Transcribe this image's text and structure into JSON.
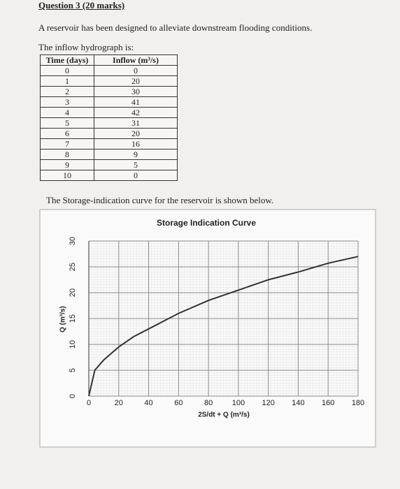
{
  "header": {
    "title": "Question 3 (20 marks)"
  },
  "intro": "A reservoir has been designed to alleviate downstream flooding conditions.",
  "hydrograph_lead": "The inflow hydrograph is:",
  "table": {
    "columns": [
      "Time (days)",
      "Inflow (m³/s)"
    ],
    "rows": [
      [
        0,
        0
      ],
      [
        1,
        20
      ],
      [
        2,
        30
      ],
      [
        3,
        41
      ],
      [
        4,
        42
      ],
      [
        5,
        31
      ],
      [
        6,
        20
      ],
      [
        7,
        16
      ],
      [
        8,
        9
      ],
      [
        9,
        5
      ],
      [
        10,
        0
      ]
    ]
  },
  "storage_lead": "The Storage-indication curve for the reservoir is shown below.",
  "chart_data": {
    "type": "line",
    "title": "Storage Indication Curve",
    "x_label": "2S/dt + Q (m³/s)",
    "y_label": "Q (m³/s)",
    "x": [
      0,
      4,
      10,
      20,
      30,
      40,
      60,
      80,
      100,
      120,
      140,
      160,
      180
    ],
    "series": [
      {
        "color": "#333333",
        "values": [
          0,
          5,
          7,
          9.5,
          11.5,
          13,
          16,
          18.5,
          20.5,
          22.5,
          24,
          25.7,
          27
        ]
      }
    ],
    "xlim": [
      0,
      180
    ],
    "xticks": [
      0,
      20,
      40,
      60,
      80,
      100,
      120,
      140,
      160,
      180
    ],
    "ylim": [
      0,
      30
    ],
    "yticks": [
      0,
      5,
      10,
      15,
      20,
      25,
      30
    ],
    "grid": true
  }
}
